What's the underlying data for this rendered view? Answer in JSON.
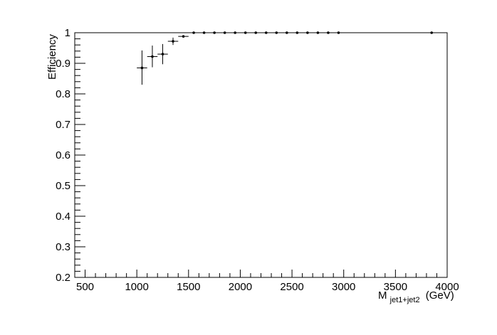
{
  "chart_data": {
    "type": "scatter",
    "style": "error-bar markers (ROOT style)",
    "title": "",
    "xlabel_main": "M",
    "xlabel_sub": "jet1+jet2",
    "xlabel_unit": "(GeV)",
    "ylabel": "Efficiency",
    "xlim": [
      400,
      4000
    ],
    "ylim": [
      0.2,
      1.0
    ],
    "x_ticks": [
      500,
      1000,
      1500,
      2000,
      2500,
      3000,
      3500,
      4000
    ],
    "x_tick_labels": [
      "500",
      "1000",
      "1500",
      "2000",
      "2500",
      "3000",
      "3500",
      "4000"
    ],
    "y_ticks": [
      0.2,
      0.3,
      0.4,
      0.5,
      0.6,
      0.7,
      0.8,
      0.9,
      1.0
    ],
    "y_tick_labels": [
      "0.2",
      "0.3",
      "0.4",
      "0.5",
      "0.6",
      "0.7",
      "0.8",
      "0.9",
      "1"
    ],
    "grid": false,
    "legend": "none",
    "marker_color": "#000000",
    "points": [
      {
        "x": 1050,
        "xerr": 50,
        "y": 0.885,
        "yerr_low": 0.055,
        "yerr_high": 0.057
      },
      {
        "x": 1150,
        "xerr": 50,
        "y": 0.922,
        "yerr_low": 0.035,
        "yerr_high": 0.036
      },
      {
        "x": 1250,
        "xerr": 50,
        "y": 0.93,
        "yerr_low": 0.033,
        "yerr_high": 0.033
      },
      {
        "x": 1350,
        "xerr": 50,
        "y": 0.972,
        "yerr_low": 0.012,
        "yerr_high": 0.012
      },
      {
        "x": 1450,
        "xerr": 50,
        "y": 0.988,
        "yerr_low": 0.004,
        "yerr_high": 0.004
      },
      {
        "x": 1550,
        "xerr": 50,
        "y": 1.0,
        "yerr_low": 0.0,
        "yerr_high": 0.0
      },
      {
        "x": 1650,
        "xerr": 50,
        "y": 1.0,
        "yerr_low": 0.0,
        "yerr_high": 0.0
      },
      {
        "x": 1750,
        "xerr": 50,
        "y": 1.0,
        "yerr_low": 0.0,
        "yerr_high": 0.0
      },
      {
        "x": 1850,
        "xerr": 50,
        "y": 1.0,
        "yerr_low": 0.0,
        "yerr_high": 0.0
      },
      {
        "x": 1950,
        "xerr": 50,
        "y": 1.0,
        "yerr_low": 0.0,
        "yerr_high": 0.0
      },
      {
        "x": 2050,
        "xerr": 50,
        "y": 1.0,
        "yerr_low": 0.0,
        "yerr_high": 0.0
      },
      {
        "x": 2150,
        "xerr": 50,
        "y": 1.0,
        "yerr_low": 0.0,
        "yerr_high": 0.0
      },
      {
        "x": 2250,
        "xerr": 50,
        "y": 1.0,
        "yerr_low": 0.0,
        "yerr_high": 0.0
      },
      {
        "x": 2350,
        "xerr": 50,
        "y": 1.0,
        "yerr_low": 0.0,
        "yerr_high": 0.0
      },
      {
        "x": 2450,
        "xerr": 50,
        "y": 1.0,
        "yerr_low": 0.0,
        "yerr_high": 0.0
      },
      {
        "x": 2550,
        "xerr": 50,
        "y": 1.0,
        "yerr_low": 0.0,
        "yerr_high": 0.0
      },
      {
        "x": 2650,
        "xerr": 50,
        "y": 1.0,
        "yerr_low": 0.0,
        "yerr_high": 0.0
      },
      {
        "x": 2750,
        "xerr": 50,
        "y": 1.0,
        "yerr_low": 0.0,
        "yerr_high": 0.0
      },
      {
        "x": 2850,
        "xerr": 50,
        "y": 1.0,
        "yerr_low": 0.0,
        "yerr_high": 0.0
      },
      {
        "x": 2950,
        "xerr": 50,
        "y": 1.0,
        "yerr_low": 0.0,
        "yerr_high": 0.0
      },
      {
        "x": 3850,
        "xerr": 50,
        "y": 1.0,
        "yerr_low": 0.0,
        "yerr_high": 0.0
      }
    ]
  }
}
